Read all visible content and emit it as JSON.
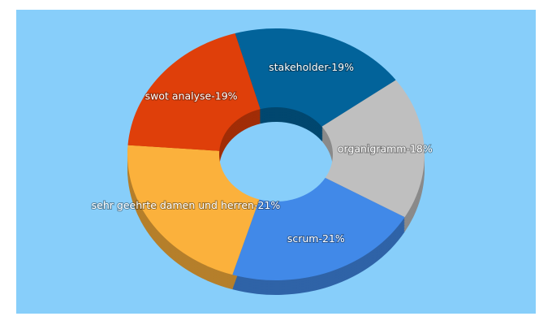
{
  "chart_data": {
    "type": "donut3d",
    "values": [
      19,
      18,
      21,
      21,
      19
    ],
    "value_labels": [
      "stakeholder-19%",
      "organigramm-18%",
      "scrum-21%",
      "sehr geehrte damen und herren-21%",
      "swot analyse-19%"
    ],
    "colors": [
      "#02639a",
      "#bfbfbf",
      "#4189e8",
      "#fbb13c",
      "#df3f0a"
    ]
  }
}
